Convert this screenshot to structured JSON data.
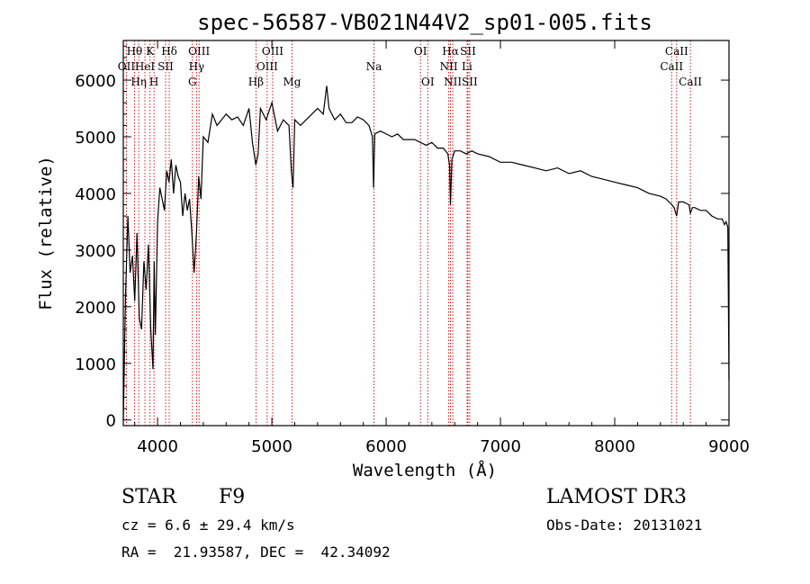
{
  "chart_data": {
    "type": "line",
    "title": "spec-56587-VB021N44V2_sp01-005.fits",
    "xlabel": "Wavelength (Å)",
    "ylabel": "Flux (relative)",
    "xlim": [
      3700,
      9000
    ],
    "ylim": [
      -100,
      6700
    ],
    "x_ticks": [
      4000,
      5000,
      6000,
      7000,
      8000,
      9000
    ],
    "x_tick_labels": [
      "4000",
      "5000",
      "6000",
      "7000",
      "8000",
      "9000"
    ],
    "y_ticks": [
      0,
      1000,
      2000,
      3000,
      4000,
      5000,
      6000
    ],
    "y_tick_labels": [
      "0",
      "1000",
      "2000",
      "3000",
      "4000",
      "5000",
      "6000"
    ],
    "series": [
      {
        "name": "flux",
        "x": [
          3700,
          3720,
          3740,
          3760,
          3780,
          3800,
          3820,
          3840,
          3860,
          3880,
          3900,
          3920,
          3940,
          3960,
          3970,
          3980,
          4000,
          4020,
          4040,
          4060,
          4080,
          4100,
          4120,
          4140,
          4160,
          4180,
          4200,
          4220,
          4240,
          4260,
          4280,
          4300,
          4320,
          4340,
          4360,
          4380,
          4400,
          4440,
          4480,
          4520,
          4560,
          4600,
          4650,
          4700,
          4750,
          4800,
          4830,
          4860,
          4880,
          4900,
          4950,
          5000,
          5050,
          5100,
          5150,
          5170,
          5185,
          5200,
          5250,
          5300,
          5350,
          5400,
          5450,
          5480,
          5500,
          5550,
          5600,
          5650,
          5700,
          5750,
          5800,
          5850,
          5880,
          5890,
          5900,
          5950,
          6000,
          6050,
          6100,
          6150,
          6200,
          6250,
          6300,
          6350,
          6400,
          6450,
          6500,
          6540,
          6555,
          6563,
          6575,
          6600,
          6650,
          6700,
          6750,
          6800,
          6900,
          7000,
          7100,
          7200,
          7300,
          7400,
          7500,
          7600,
          7700,
          7800,
          7900,
          8000,
          8100,
          8200,
          8300,
          8400,
          8450,
          8500,
          8520,
          8542,
          8560,
          8600,
          8650,
          8662,
          8680,
          8700,
          8750,
          8800,
          8850,
          8900,
          8940,
          8960,
          8975,
          8990,
          9000
        ],
        "y": [
          0,
          2200,
          3600,
          2600,
          2900,
          2100,
          3300,
          1800,
          1600,
          2800,
          2300,
          3100,
          1600,
          900,
          2800,
          1500,
          3500,
          4100,
          3900,
          3700,
          4400,
          4200,
          4600,
          4000,
          4500,
          4300,
          4200,
          3600,
          4000,
          3700,
          3900,
          3300,
          2600,
          3300,
          4300,
          3900,
          5000,
          4900,
          5400,
          5200,
          5300,
          5400,
          5300,
          5350,
          5200,
          5500,
          4900,
          4500,
          4700,
          5500,
          5300,
          5600,
          5100,
          5300,
          5200,
          4400,
          4100,
          5300,
          5200,
          5300,
          5400,
          5500,
          5400,
          5900,
          5500,
          5300,
          5400,
          5250,
          5250,
          5350,
          5300,
          5200,
          5000,
          4100,
          5050,
          5100,
          5050,
          5000,
          5050,
          4950,
          4950,
          4950,
          4900,
          4850,
          4900,
          4800,
          4800,
          4700,
          4500,
          3800,
          4600,
          4750,
          4750,
          4700,
          4750,
          4700,
          4650,
          4550,
          4550,
          4500,
          4450,
          4400,
          4450,
          4350,
          4400,
          4300,
          4250,
          4200,
          4150,
          4100,
          4000,
          3950,
          3900,
          3800,
          3750,
          3600,
          3850,
          3850,
          3800,
          3650,
          3750,
          3750,
          3700,
          3700,
          3600,
          3550,
          3550,
          3450,
          3500,
          3400,
          700
        ]
      }
    ],
    "spectral_lines": [
      {
        "name": "Hθ",
        "wavelength": 3798,
        "row": 0
      },
      {
        "name": "OII",
        "wavelength": 3727,
        "row": 1
      },
      {
        "name": "Hη",
        "wavelength": 3835,
        "row": 2
      },
      {
        "name": "HeI",
        "wavelength": 3889,
        "row": 1
      },
      {
        "name": "K",
        "wavelength": 3934,
        "row": 0
      },
      {
        "name": "H",
        "wavelength": 3969,
        "row": 2
      },
      {
        "name": "SII",
        "wavelength": 4070,
        "row": 1
      },
      {
        "name": "Hδ",
        "wavelength": 4102,
        "row": 0
      },
      {
        "name": "G",
        "wavelength": 4305,
        "row": 2
      },
      {
        "name": "Hγ",
        "wavelength": 4341,
        "row": 1
      },
      {
        "name": "OIII",
        "wavelength": 4363,
        "row": 0
      },
      {
        "name": "Hβ",
        "wavelength": 4861,
        "row": 2
      },
      {
        "name": "OIII",
        "wavelength": 4959,
        "row": 1
      },
      {
        "name": "OIII",
        "wavelength": 5007,
        "row": 0
      },
      {
        "name": "Mg",
        "wavelength": 5176,
        "row": 2
      },
      {
        "name": "Na",
        "wavelength": 5893,
        "row": 1
      },
      {
        "name": "OI",
        "wavelength": 6300,
        "row": 0
      },
      {
        "name": "OI",
        "wavelength": 6364,
        "row": 2
      },
      {
        "name": "NII",
        "wavelength": 6548,
        "row": 1
      },
      {
        "name": "Hα",
        "wavelength": 6563,
        "row": 0
      },
      {
        "name": "NII",
        "wavelength": 6583,
        "row": 2
      },
      {
        "name": "Li",
        "wavelength": 6708,
        "row": 1
      },
      {
        "name": "SII",
        "wavelength": 6716,
        "row": 0
      },
      {
        "name": "SII",
        "wavelength": 6731,
        "row": 2
      },
      {
        "name": "CaII",
        "wavelength": 8498,
        "row": 1
      },
      {
        "name": "CaII",
        "wavelength": 8542,
        "row": 0
      },
      {
        "name": "CaII",
        "wavelength": 8662,
        "row": 2
      }
    ],
    "line_color": "#000000",
    "marker_color": "#cc0000"
  },
  "info": {
    "object_class": "STAR",
    "subclass": "F9",
    "survey": "LAMOST DR3",
    "redshift": "cz = 6.6 ± 29.4 km/s",
    "obs_date": "Obs-Date: 20131021",
    "coords": "RA =  21.93587, DEC =  42.34092"
  }
}
